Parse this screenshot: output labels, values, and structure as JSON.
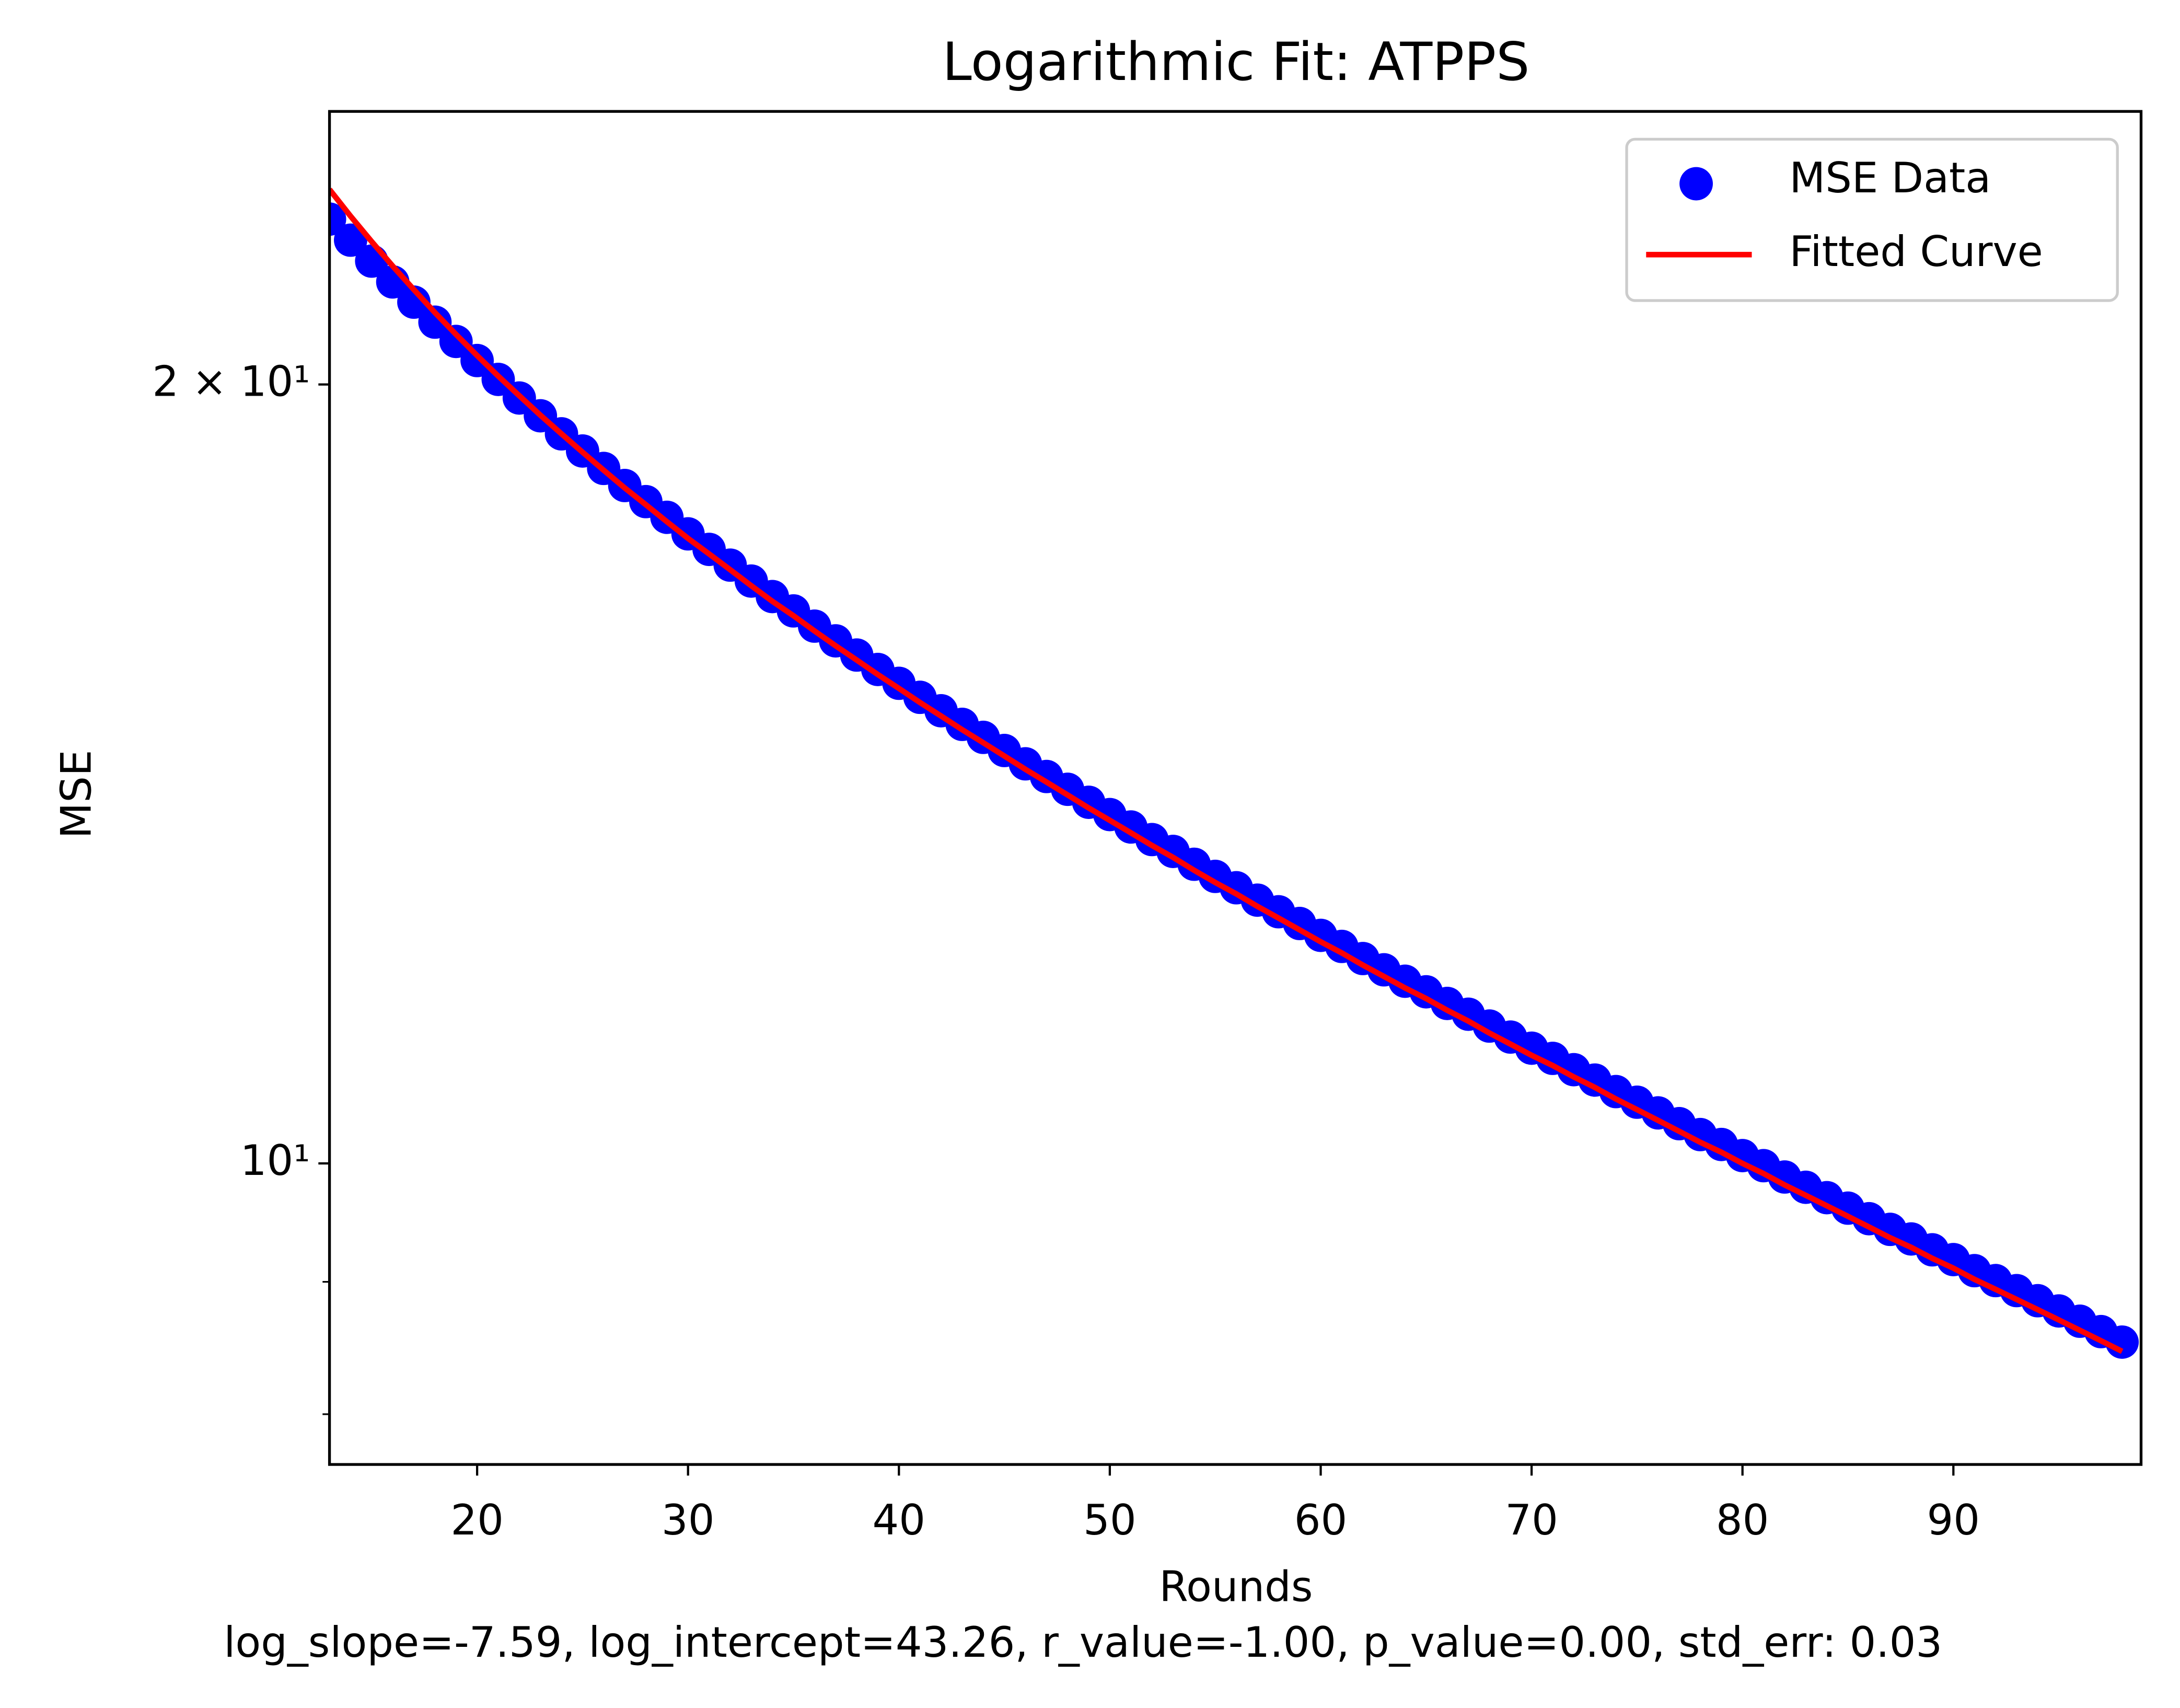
{
  "chart_data": {
    "type": "scatter",
    "title": "Logarithmic Fit: ATPPS",
    "xlabel": "Rounds",
    "ylabel": "MSE",
    "annotation": "log_slope=-7.59, log_intercept=43.26, r_value=-1.00, p_value=0.00, std_err: 0.03",
    "yscale": "log",
    "legend": "upper right",
    "x": [
      13,
      14,
      15,
      16,
      17,
      18,
      19,
      20,
      21,
      22,
      23,
      24,
      25,
      26,
      27,
      28,
      29,
      30,
      31,
      32,
      33,
      34,
      35,
      36,
      37,
      38,
      39,
      40,
      41,
      42,
      43,
      44,
      45,
      46,
      47,
      48,
      49,
      50,
      51,
      52,
      53,
      54,
      55,
      56,
      57,
      58,
      59,
      60,
      61,
      62,
      63,
      64,
      65,
      66,
      67,
      68,
      69,
      70,
      71,
      72,
      73,
      74,
      75,
      76,
      77,
      78,
      79,
      80,
      81,
      82,
      83,
      84,
      85,
      86,
      87,
      88,
      89,
      90,
      91,
      92,
      93,
      94,
      95,
      96,
      97,
      98
    ],
    "series": [
      {
        "name": "MSE Data",
        "type": "scatter",
        "color": "#0000ff",
        "values": [
          23.17,
          22.74,
          22.32,
          21.91,
          21.52,
          21.14,
          20.78,
          20.43,
          20.09,
          19.76,
          19.45,
          19.14,
          18.85,
          18.56,
          18.28,
          18.02,
          17.77,
          17.51,
          17.27,
          17.03,
          16.79,
          16.56,
          16.35,
          16.13,
          15.92,
          15.72,
          15.52,
          15.33,
          15.14,
          14.96,
          14.78,
          14.61,
          14.44,
          14.27,
          14.11,
          13.95,
          13.79,
          13.64,
          13.49,
          13.34,
          13.2,
          13.05,
          12.91,
          12.78,
          12.64,
          12.51,
          12.38,
          12.25,
          12.13,
          12.0,
          11.88,
          11.76,
          11.65,
          11.53,
          11.42,
          11.3,
          11.19,
          11.08,
          10.98,
          10.87,
          10.77,
          10.66,
          10.56,
          10.46,
          10.36,
          10.26,
          10.17,
          10.07,
          9.98,
          9.88,
          9.79,
          9.7,
          9.61,
          9.52,
          9.43,
          9.35,
          9.26,
          9.18,
          9.09,
          9.01,
          8.93,
          8.85,
          8.77,
          8.69,
          8.61,
          8.53
        ]
      },
      {
        "name": "Fitted Curve",
        "type": "line",
        "color": "#ff0000",
        "values": [
          23.79,
          23.23,
          22.71,
          22.22,
          21.76,
          21.32,
          20.91,
          20.52,
          20.15,
          19.8,
          19.46,
          19.14,
          18.83,
          18.53,
          18.24,
          17.97,
          17.7,
          17.44,
          17.2,
          16.96,
          16.72,
          16.49,
          16.28,
          16.06,
          15.85,
          15.65,
          15.45,
          15.26,
          15.07,
          14.89,
          14.71,
          14.54,
          14.37,
          14.2,
          14.04,
          13.88,
          13.72,
          13.57,
          13.42,
          13.27,
          13.13,
          12.98,
          12.84,
          12.71,
          12.57,
          12.44,
          12.31,
          12.18,
          12.06,
          11.93,
          11.81,
          11.69,
          11.58,
          11.46,
          11.35,
          11.23,
          11.12,
          11.01,
          10.91,
          10.8,
          10.7,
          10.59,
          10.49,
          10.39,
          10.29,
          10.19,
          10.1,
          10.0,
          9.91,
          9.81,
          9.72,
          9.63,
          9.54,
          9.45,
          9.36,
          9.28,
          9.19,
          9.11,
          9.02,
          8.94,
          8.86,
          8.78,
          8.7,
          8.62,
          8.54,
          8.46
        ]
      }
    ],
    "xlim": [
      13,
      98.9
    ],
    "xticks": [
      20,
      30,
      40,
      50,
      60,
      70,
      80,
      90
    ],
    "ylim": [
      7.65,
      25.5
    ],
    "yticks": [
      {
        "value": 10,
        "label": "10¹"
      },
      {
        "value": 20,
        "label": "2 × 10¹"
      }
    ],
    "yminorticks": [
      8,
      9
    ]
  }
}
